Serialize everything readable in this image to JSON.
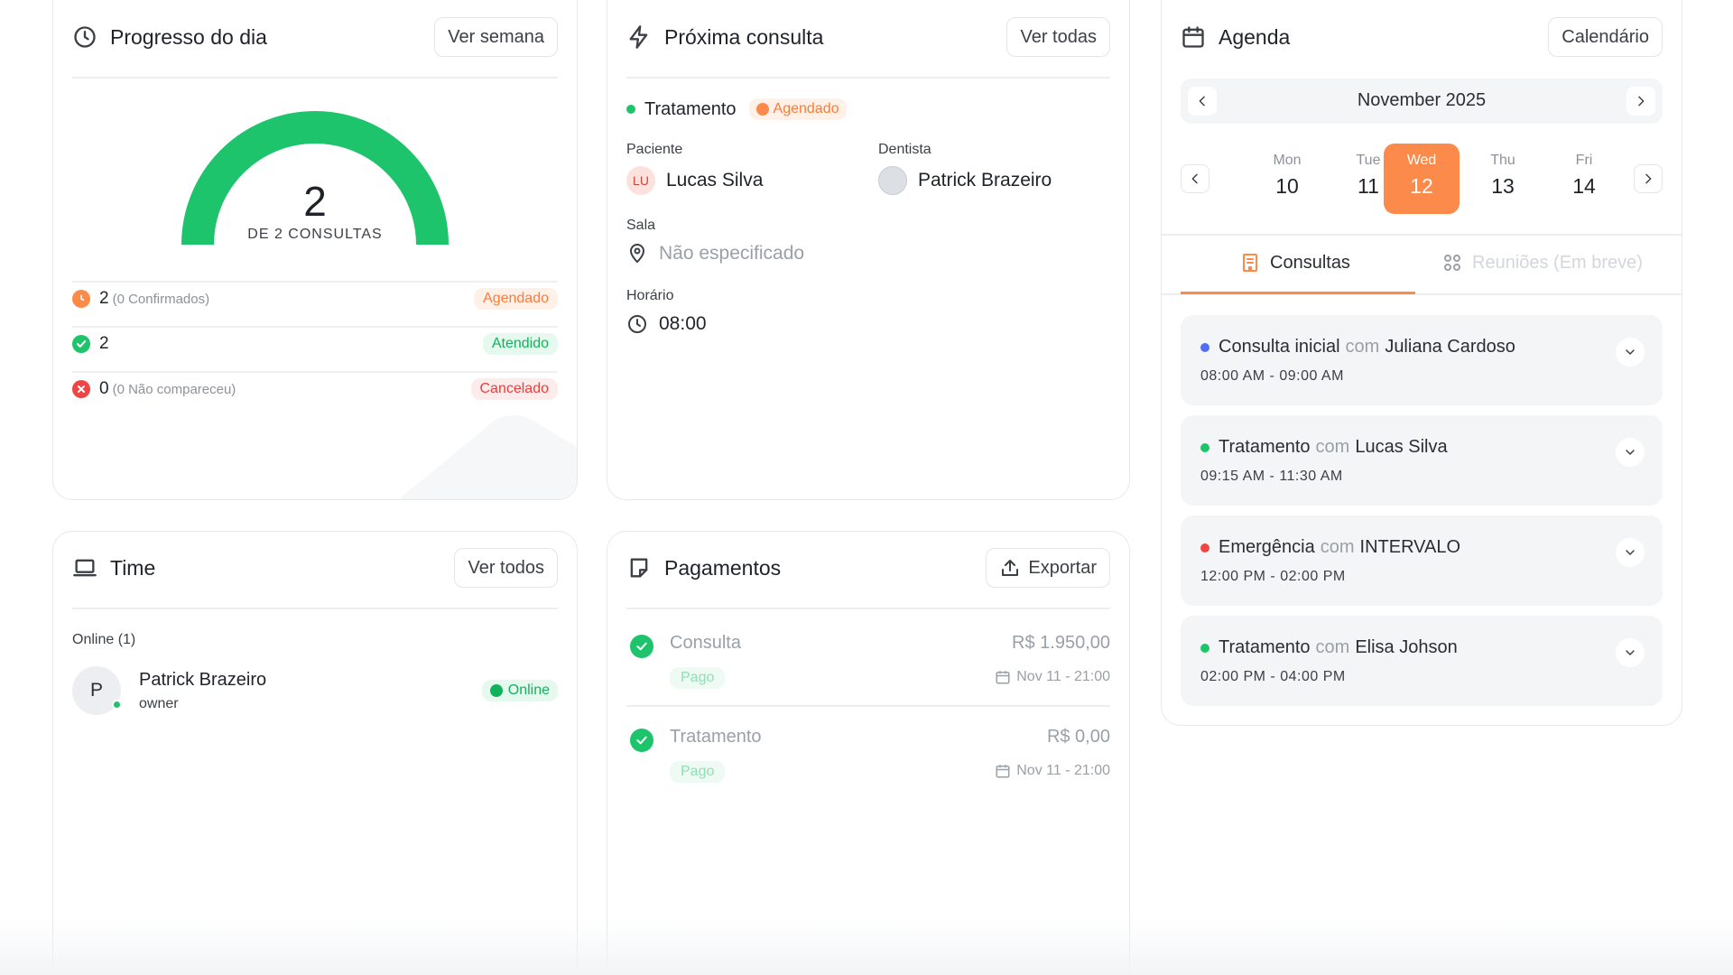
{
  "progress": {
    "title": "Progresso do dia",
    "button": "Ver semana",
    "gauge_value": "2",
    "gauge_label": "DE 2 CONSULTAS",
    "gauge_fraction": 1.0,
    "rows": [
      {
        "count": "2",
        "sub": "(0 Confirmados)",
        "badge": "Agendado",
        "color": "#fb8a4b",
        "badge_bg": "#fff1e8",
        "badge_color": "#fb7b3a",
        "icon": "clock-icon"
      },
      {
        "count": "2",
        "sub": "",
        "badge": "Atendido",
        "color": "#1ec46b",
        "badge_bg": "#e6f9ee",
        "badge_color": "#12b25c",
        "icon": "check-icon"
      },
      {
        "count": "0",
        "sub": "(0 Não compareceu)",
        "badge": "Cancelado",
        "color": "#f04545",
        "badge_bg": "#fdecec",
        "badge_color": "#ee3b3b",
        "icon": "x-icon"
      }
    ]
  },
  "next": {
    "title": "Próxima consulta",
    "button": "Ver todas",
    "type": "Tratamento",
    "status": "Agendado",
    "patient_label": "Paciente",
    "patient_initials": "LU",
    "patient_name": "Lucas Silva",
    "dentist_label": "Dentista",
    "dentist_name": "Patrick Brazeiro",
    "room_label": "Sala",
    "room_value": "Não especificado",
    "time_label": "Horário",
    "time_value": "08:00"
  },
  "agenda": {
    "title": "Agenda",
    "button": "Calendário",
    "month": "November 2025",
    "days": [
      {
        "name": "Mon",
        "num": "10"
      },
      {
        "name": "Tue",
        "num": "11"
      },
      {
        "name": "Wed",
        "num": "12",
        "selected": true
      },
      {
        "name": "Thu",
        "num": "13"
      },
      {
        "name": "Fri",
        "num": "14"
      }
    ],
    "tab_active": "Consultas",
    "tab_inactive": "Reuniões (Em breve)",
    "connector": "com",
    "appointments": [
      {
        "type": "Consulta inicial",
        "who": "Juliana Cardoso",
        "time": "08:00 AM - 09:00 AM",
        "color": "#4f6ef7"
      },
      {
        "type": "Tratamento",
        "who": "Lucas Silva",
        "time": "09:15 AM - 11:30 AM",
        "color": "#1ec46b"
      },
      {
        "type": "Emergência",
        "who": "INTERVALO",
        "time": "12:00 PM - 02:00 PM",
        "color": "#f04545"
      },
      {
        "type": "Tratamento",
        "who": "Elisa Johson",
        "time": "02:00 PM - 04:00 PM",
        "color": "#1ec46b"
      }
    ]
  },
  "team": {
    "title": "Time",
    "button": "Ver todos",
    "online_label": "Online (1)",
    "member_initial": "P",
    "member_name": "Patrick Brazeiro",
    "member_role": "owner",
    "member_status": "Online"
  },
  "payments": {
    "title": "Pagamentos",
    "button": "Exportar",
    "items": [
      {
        "name": "Consulta",
        "status": "Pago",
        "amount": "R$ 1.950,00",
        "date": "Nov 11 - 21:00"
      },
      {
        "name": "Tratamento",
        "status": "Pago",
        "amount": "R$ 0,00",
        "date": "Nov 11 - 21:00"
      }
    ]
  }
}
